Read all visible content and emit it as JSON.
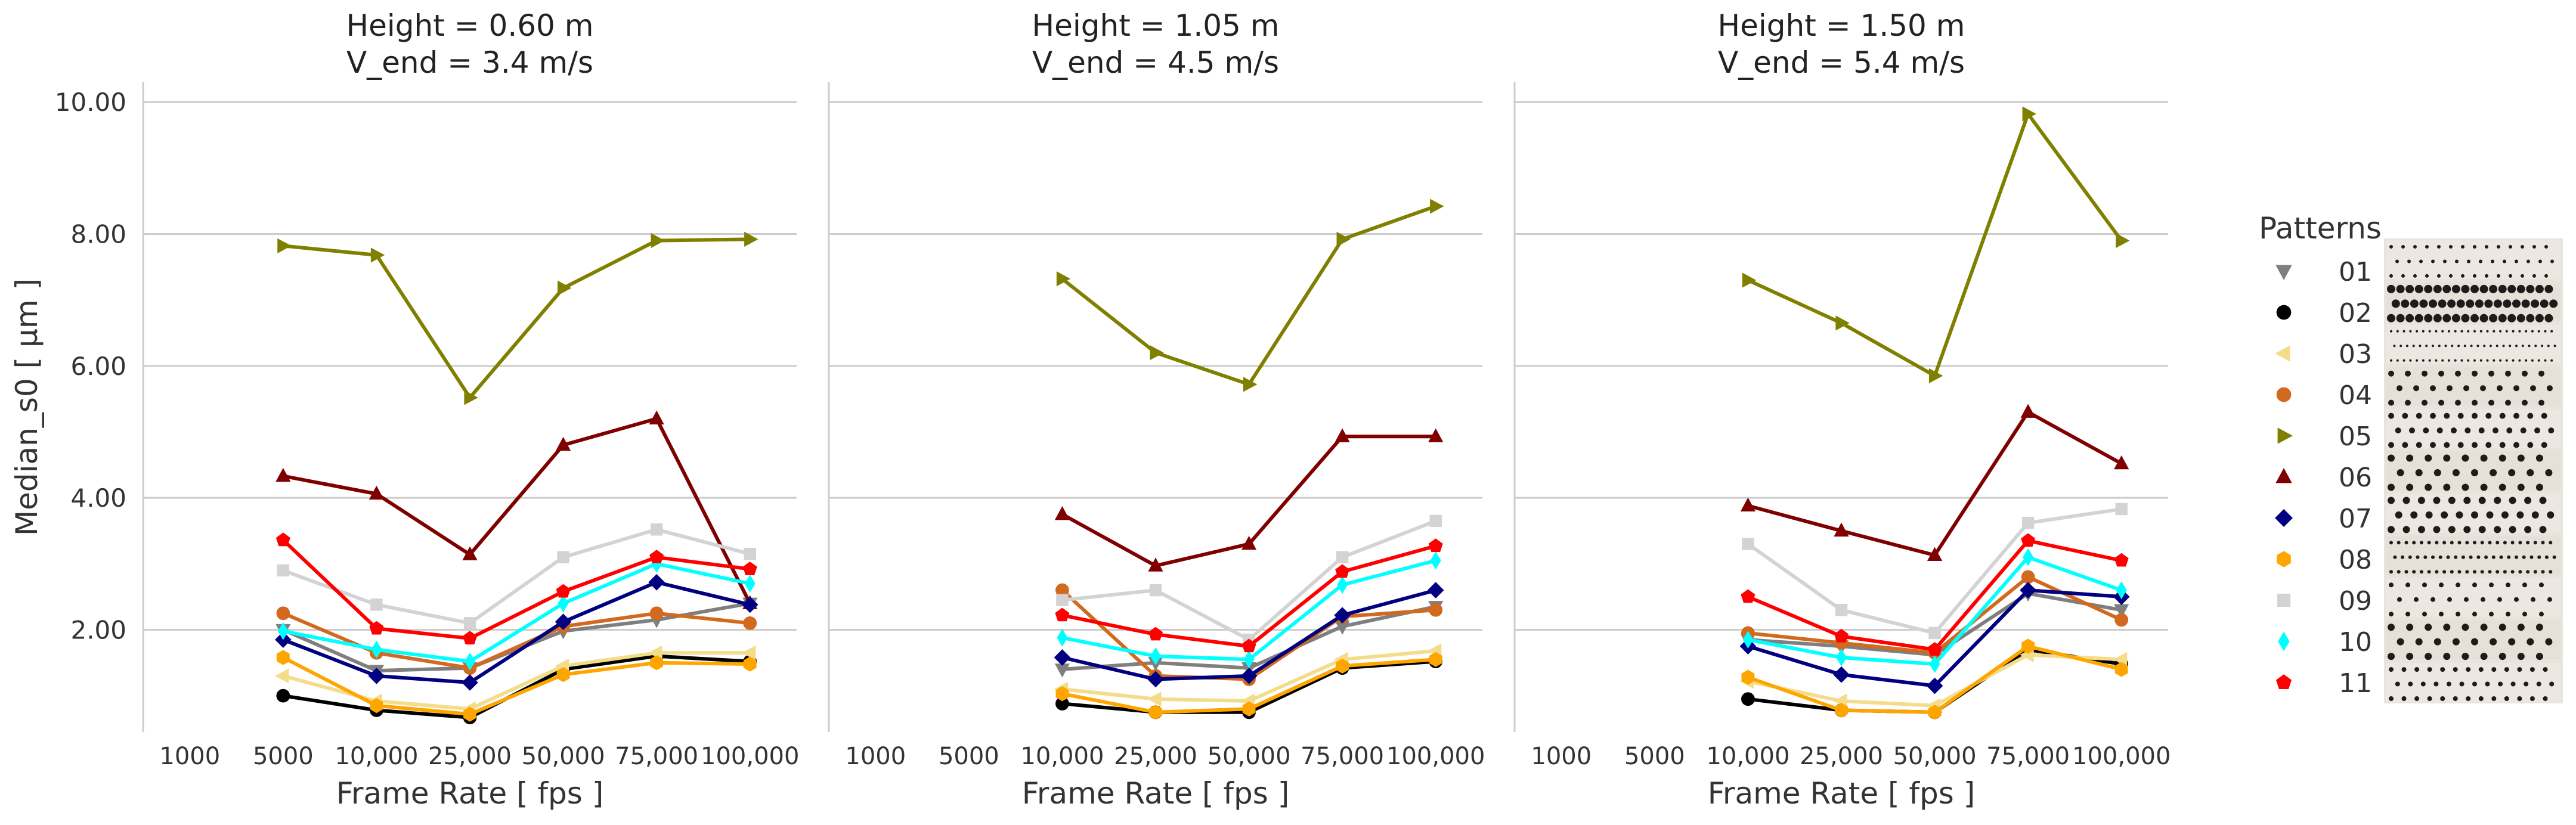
{
  "chart_data": [
    {
      "type": "line",
      "title_line1": "Height = 0.60 m",
      "title_line2": "V_end = 3.4 m/s",
      "xlabel": "Frame Rate [ fps ]",
      "ylabel": "Median_s0 [ μm ]",
      "categories": [
        "1000",
        "5000",
        "10,000",
        "25,000",
        "50,000",
        "75,000",
        "100,000"
      ],
      "ylim": [
        0.45,
        10.3
      ],
      "yticks": [
        "2.00",
        "4.00",
        "6.00",
        "8.00",
        "10.00"
      ],
      "grid": "horizontal",
      "series": [
        {
          "name": "01",
          "values": [
            null,
            2.0,
            1.38,
            1.42,
            1.98,
            2.15,
            2.4
          ]
        },
        {
          "name": "02",
          "values": [
            null,
            1.0,
            0.78,
            0.67,
            1.4,
            1.6,
            1.52
          ]
        },
        {
          "name": "03",
          "values": [
            null,
            1.3,
            0.92,
            0.8,
            1.45,
            1.65,
            1.65
          ]
        },
        {
          "name": "04",
          "values": [
            null,
            2.25,
            1.65,
            1.42,
            2.05,
            2.25,
            2.1
          ]
        },
        {
          "name": "05",
          "values": [
            null,
            7.82,
            7.68,
            5.52,
            7.18,
            7.9,
            7.92
          ]
        },
        {
          "name": "06",
          "values": [
            null,
            4.33,
            4.06,
            3.14,
            4.8,
            5.2,
            2.4
          ]
        },
        {
          "name": "07",
          "values": [
            null,
            1.85,
            1.3,
            1.2,
            2.12,
            2.72,
            2.38
          ]
        },
        {
          "name": "08",
          "values": [
            null,
            1.58,
            0.85,
            0.72,
            1.32,
            1.5,
            1.48
          ]
        },
        {
          "name": "09",
          "values": [
            null,
            2.9,
            2.38,
            2.1,
            3.1,
            3.52,
            3.15
          ]
        },
        {
          "name": "10",
          "values": [
            null,
            1.98,
            1.7,
            1.52,
            2.4,
            3.0,
            2.7
          ]
        },
        {
          "name": "11",
          "values": [
            null,
            3.36,
            2.02,
            1.87,
            2.58,
            3.1,
            2.92
          ]
        }
      ]
    },
    {
      "type": "line",
      "title_line1": "Height = 1.05 m",
      "title_line2": "V_end = 4.5 m/s",
      "xlabel": "Frame Rate [ fps ]",
      "categories": [
        "1000",
        "5000",
        "10,000",
        "25,000",
        "50,000",
        "75,000",
        "100,000"
      ],
      "ylim": [
        0.45,
        10.3
      ],
      "grid": "horizontal",
      "series": [
        {
          "name": "01",
          "values": [
            null,
            null,
            1.4,
            1.5,
            1.42,
            2.05,
            2.35
          ]
        },
        {
          "name": "02",
          "values": [
            null,
            null,
            0.88,
            0.75,
            0.75,
            1.42,
            1.52
          ]
        },
        {
          "name": "03",
          "values": [
            null,
            null,
            1.1,
            0.95,
            0.92,
            1.55,
            1.68
          ]
        },
        {
          "name": "04",
          "values": [
            null,
            null,
            2.6,
            1.3,
            1.25,
            2.2,
            2.3
          ]
        },
        {
          "name": "05",
          "values": [
            null,
            null,
            7.32,
            6.2,
            5.72,
            7.92,
            8.42
          ]
        },
        {
          "name": "06",
          "values": [
            null,
            null,
            3.75,
            2.97,
            3.3,
            4.93,
            4.93
          ]
        },
        {
          "name": "07",
          "values": [
            null,
            null,
            1.58,
            1.25,
            1.3,
            2.22,
            2.6
          ]
        },
        {
          "name": "08",
          "values": [
            null,
            null,
            1.03,
            0.75,
            0.8,
            1.45,
            1.55
          ]
        },
        {
          "name": "09",
          "values": [
            null,
            null,
            2.45,
            2.6,
            1.85,
            3.1,
            3.65
          ]
        },
        {
          "name": "10",
          "values": [
            null,
            null,
            1.88,
            1.6,
            1.55,
            2.68,
            3.05
          ]
        },
        {
          "name": "11",
          "values": [
            null,
            null,
            2.22,
            1.93,
            1.75,
            2.88,
            3.27
          ]
        }
      ]
    },
    {
      "type": "line",
      "title_line1": "Height = 1.50 m",
      "title_line2": "V_end = 5.4 m/s",
      "xlabel": "Frame Rate [ fps ]",
      "categories": [
        "1000",
        "5000",
        "10,000",
        "25,000",
        "50,000",
        "75,000",
        "100,000"
      ],
      "ylim": [
        0.45,
        10.3
      ],
      "grid": "horizontal",
      "series": [
        {
          "name": "01",
          "values": [
            null,
            null,
            1.85,
            1.75,
            1.62,
            2.55,
            2.3
          ]
        },
        {
          "name": "02",
          "values": [
            null,
            null,
            0.95,
            0.78,
            0.75,
            1.7,
            1.48
          ]
        },
        {
          "name": "03",
          "values": [
            null,
            null,
            1.22,
            0.92,
            0.85,
            1.62,
            1.55
          ]
        },
        {
          "name": "04",
          "values": [
            null,
            null,
            1.95,
            1.8,
            1.65,
            2.8,
            2.15
          ]
        },
        {
          "name": "05",
          "values": [
            null,
            null,
            7.3,
            6.65,
            5.85,
            9.82,
            7.9
          ]
        },
        {
          "name": "06",
          "values": [
            null,
            null,
            3.88,
            3.5,
            3.13,
            5.3,
            4.52
          ]
        },
        {
          "name": "07",
          "values": [
            null,
            null,
            1.75,
            1.32,
            1.15,
            2.6,
            2.5
          ]
        },
        {
          "name": "08",
          "values": [
            null,
            null,
            1.28,
            0.78,
            0.75,
            1.75,
            1.4
          ]
        },
        {
          "name": "09",
          "values": [
            null,
            null,
            3.3,
            2.3,
            1.95,
            3.62,
            3.83
          ]
        },
        {
          "name": "10",
          "values": [
            null,
            null,
            1.85,
            1.58,
            1.48,
            3.1,
            2.6
          ]
        },
        {
          "name": "11",
          "values": [
            null,
            null,
            2.5,
            1.9,
            1.7,
            3.35,
            3.05
          ]
        }
      ]
    }
  ],
  "legend": {
    "title": "Patterns",
    "placement": "right",
    "items": [
      {
        "label": "01",
        "color": "#7f7f7f",
        "marker": "triangle-down"
      },
      {
        "label": "02",
        "color": "#000000",
        "marker": "circle"
      },
      {
        "label": "03",
        "color": "#f3dc8a",
        "marker": "triangle-left"
      },
      {
        "label": "04",
        "color": "#d2691e",
        "marker": "circle"
      },
      {
        "label": "05",
        "color": "#808000",
        "marker": "triangle-right"
      },
      {
        "label": "06",
        "color": "#800000",
        "marker": "triangle-up"
      },
      {
        "label": "07",
        "color": "#000080",
        "marker": "diamond"
      },
      {
        "label": "08",
        "color": "#ffa500",
        "marker": "hexagon"
      },
      {
        "label": "09",
        "color": "#d3d3d3",
        "marker": "square"
      },
      {
        "label": "10",
        "color": "#00ffff",
        "marker": "thin-diamond"
      },
      {
        "label": "11",
        "color": "#ff0000",
        "marker": "pentagon"
      }
    ]
  },
  "pattern_image": "pattern-swatches-image"
}
